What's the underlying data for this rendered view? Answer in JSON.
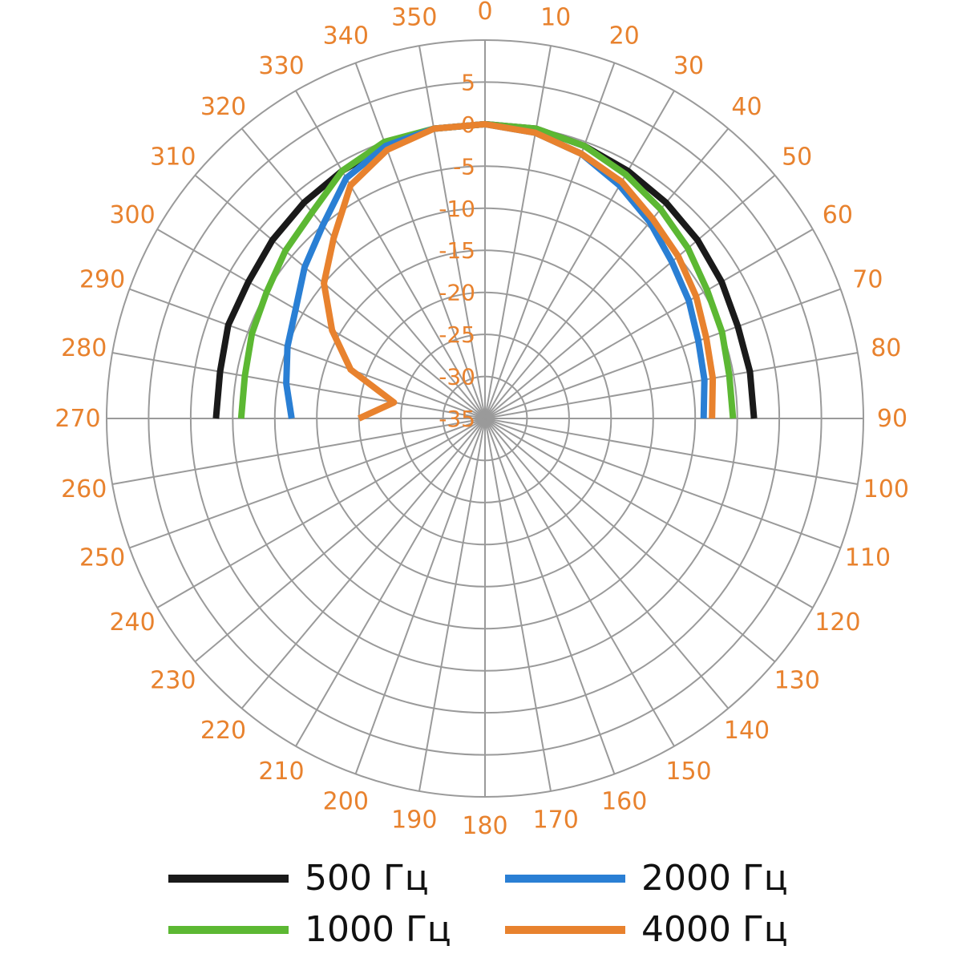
{
  "chart_data": {
    "type": "polar-line",
    "title": "",
    "angle_unit": "degrees",
    "angle_direction": "clockwise",
    "zero_at": "top",
    "angle_ticks": [
      0,
      10,
      20,
      30,
      40,
      50,
      60,
      70,
      80,
      90,
      100,
      110,
      120,
      130,
      140,
      150,
      160,
      170,
      180,
      190,
      200,
      210,
      220,
      230,
      240,
      250,
      260,
      270,
      280,
      290,
      300,
      310,
      320,
      330,
      340,
      350
    ],
    "angle_tick_labels": [
      "0",
      "10",
      "20",
      "30",
      "40",
      "50",
      "60",
      "70",
      "80",
      "90",
      "100",
      "110",
      "120",
      "130",
      "140",
      "150",
      "160",
      "170",
      "180",
      "190",
      "200",
      "210",
      "220",
      "230",
      "240",
      "250",
      "260",
      "270",
      "280",
      "290",
      "300",
      "310",
      "320",
      "330",
      "340",
      "350"
    ],
    "radial_ticks": [
      5,
      0,
      -5,
      -10,
      -15,
      -20,
      -25,
      -30,
      -35
    ],
    "radial_tick_labels": [
      "5",
      "0",
      "-5",
      "-10",
      "-15",
      "-20",
      "-25",
      "-30",
      "-35"
    ],
    "radial_range": [
      -35,
      10
    ],
    "legend_position": "bottom",
    "series": [
      {
        "name": "500 Гц",
        "color": "#1a1a1a",
        "points": [
          [
            270,
            -3
          ],
          [
            280,
            -3
          ],
          [
            290,
            -2.5
          ],
          [
            300,
            -2.5
          ],
          [
            310,
            -2
          ],
          [
            320,
            -1.5
          ],
          [
            330,
            -1
          ],
          [
            340,
            -0.5
          ],
          [
            350,
            0
          ],
          [
            0,
            0
          ],
          [
            10,
            0
          ],
          [
            20,
            -0.5
          ],
          [
            30,
            -1
          ],
          [
            40,
            -1.5
          ],
          [
            50,
            -2
          ],
          [
            60,
            -2.5
          ],
          [
            70,
            -3
          ],
          [
            80,
            -3
          ],
          [
            90,
            -3
          ]
        ]
      },
      {
        "name": "1000 Гц",
        "color": "#5cb833",
        "points": [
          [
            270,
            -6
          ],
          [
            280,
            -6
          ],
          [
            290,
            -5.5
          ],
          [
            300,
            -5
          ],
          [
            310,
            -4
          ],
          [
            320,
            -3
          ],
          [
            330,
            -1
          ],
          [
            340,
            0
          ],
          [
            350,
            0
          ],
          [
            0,
            0
          ],
          [
            10,
            0
          ],
          [
            20,
            -0.5
          ],
          [
            30,
            -1.5
          ],
          [
            40,
            -2.5
          ],
          [
            50,
            -3.5
          ],
          [
            60,
            -4.5
          ],
          [
            70,
            -5
          ],
          [
            80,
            -5.5
          ],
          [
            90,
            -5.5
          ]
        ]
      },
      {
        "name": "2000 Гц",
        "color": "#2a7fd4",
        "points": [
          [
            270,
            -12
          ],
          [
            280,
            -11
          ],
          [
            290,
            -10
          ],
          [
            300,
            -9
          ],
          [
            310,
            -7
          ],
          [
            320,
            -5
          ],
          [
            330,
            -2
          ],
          [
            340,
            -0.5
          ],
          [
            350,
            0
          ],
          [
            0,
            0
          ],
          [
            10,
            -0.5
          ],
          [
            20,
            -1.5
          ],
          [
            30,
            -3
          ],
          [
            40,
            -4.5
          ],
          [
            50,
            -6
          ],
          [
            60,
            -7
          ],
          [
            70,
            -8
          ],
          [
            80,
            -8.5
          ],
          [
            90,
            -9
          ]
        ]
      },
      {
        "name": "4000 Гц",
        "color": "#e8822e",
        "points": [
          [
            270,
            -20
          ],
          [
            280,
            -24
          ],
          [
            290,
            -18
          ],
          [
            300,
            -14
          ],
          [
            310,
            -10
          ],
          [
            320,
            -7
          ],
          [
            330,
            -3
          ],
          [
            340,
            -1
          ],
          [
            350,
            0
          ],
          [
            0,
            0
          ],
          [
            10,
            -0.5
          ],
          [
            20,
            -1.5
          ],
          [
            30,
            -2.5
          ],
          [
            40,
            -4
          ],
          [
            50,
            -5
          ],
          [
            60,
            -6
          ],
          [
            70,
            -7
          ],
          [
            80,
            -7.5
          ],
          [
            90,
            -8
          ]
        ]
      }
    ]
  }
}
